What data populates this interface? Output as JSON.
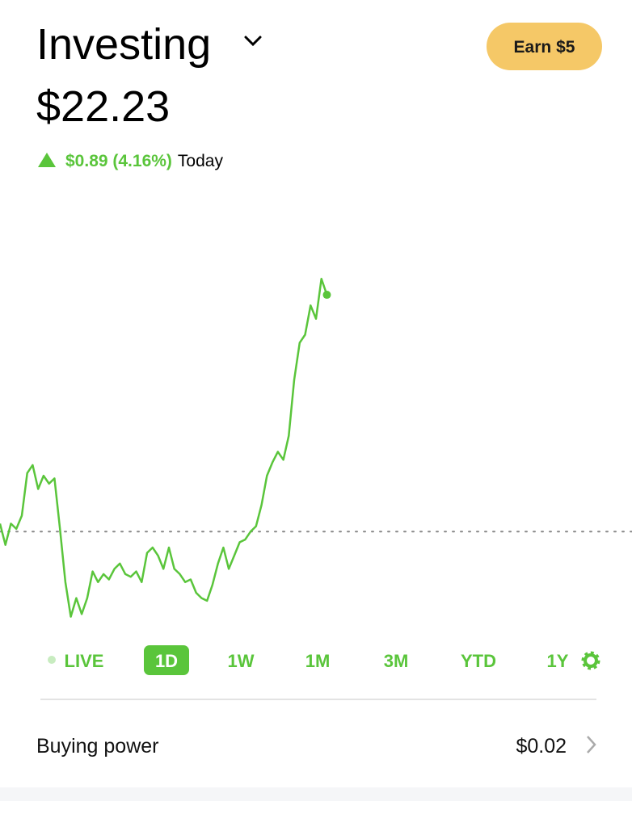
{
  "header": {
    "title": "Investing",
    "button": "Earn $5"
  },
  "portfolio": {
    "value": "$22.23",
    "change": "$0.89 (4.16%)",
    "period": "Today"
  },
  "chart_data": {
    "type": "line",
    "color": "#5ac53b",
    "values": [
      21.37,
      21.29,
      21.37,
      21.35,
      21.4,
      21.56,
      21.59,
      21.5,
      21.55,
      21.52,
      21.54,
      21.35,
      21.15,
      21.02,
      21.09,
      21.03,
      21.09,
      21.19,
      21.15,
      21.18,
      21.16,
      21.2,
      21.22,
      21.18,
      21.17,
      21.19,
      21.15,
      21.26,
      21.28,
      21.25,
      21.2,
      21.28,
      21.2,
      21.18,
      21.15,
      21.16,
      21.11,
      21.09,
      21.08,
      21.14,
      21.22,
      21.28,
      21.2,
      21.25,
      21.3,
      21.31,
      21.34,
      21.36,
      21.44,
      21.55,
      21.6,
      21.64,
      21.61,
      21.7,
      21.91,
      22.05,
      22.08,
      22.19,
      22.14,
      22.29,
      22.23
    ],
    "xlim": [
      0,
      116
    ],
    "ylim": [
      20.94,
      22.64
    ],
    "reference_line": 21.34
  },
  "ranges": [
    "LIVE",
    "1D",
    "1W",
    "1M",
    "3M",
    "YTD",
    "1Y"
  ],
  "selected_range": 1,
  "buying_power": {
    "label": "Buying power",
    "value": "$0.02"
  }
}
